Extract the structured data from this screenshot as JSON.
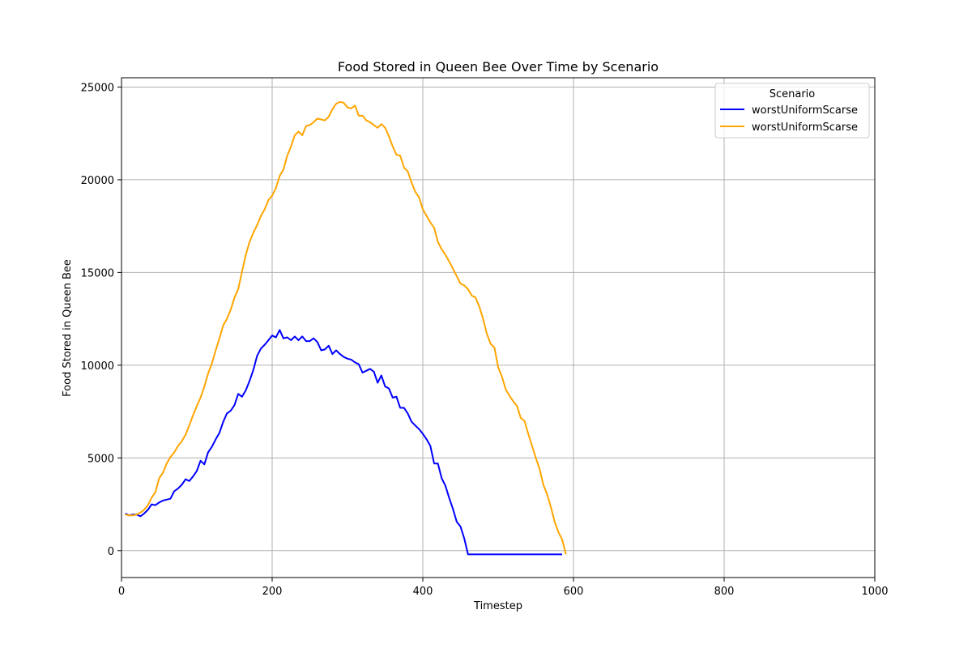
{
  "chart_data": {
    "type": "line",
    "title": "Food Stored in Queen Bee Over Time by Scenario",
    "xlabel": "Timestep",
    "ylabel": "Food Stored in Queen Bee",
    "xlim": [
      0,
      1000
    ],
    "ylim": [
      -1450,
      25500
    ],
    "xticks": [
      0,
      200,
      400,
      600,
      800,
      1000
    ],
    "yticks": [
      0,
      5000,
      10000,
      15000,
      20000,
      25000
    ],
    "grid": true,
    "legend": {
      "title": "Scenario",
      "placement": "top-right"
    },
    "series": [
      {
        "name": "worstUniformScarse",
        "color": "#0000ff",
        "points": [
          [
            5,
            2000
          ],
          [
            10,
            1900
          ],
          [
            15,
            1950
          ],
          [
            20,
            1950
          ],
          [
            25,
            1850
          ],
          [
            30,
            2000
          ],
          [
            35,
            2200
          ],
          [
            40,
            2500
          ],
          [
            45,
            2450
          ],
          [
            50,
            2600
          ],
          [
            55,
            2700
          ],
          [
            60,
            2750
          ],
          [
            65,
            2800
          ],
          [
            70,
            3200
          ],
          [
            75,
            3350
          ],
          [
            80,
            3550
          ],
          [
            85,
            3850
          ],
          [
            90,
            3750
          ],
          [
            95,
            4000
          ],
          [
            100,
            4300
          ],
          [
            105,
            4850
          ],
          [
            110,
            4650
          ],
          [
            115,
            5300
          ],
          [
            120,
            5600
          ],
          [
            125,
            6000
          ],
          [
            130,
            6350
          ],
          [
            135,
            6950
          ],
          [
            140,
            7400
          ],
          [
            145,
            7550
          ],
          [
            150,
            7850
          ],
          [
            155,
            8450
          ],
          [
            160,
            8300
          ],
          [
            165,
            8650
          ],
          [
            170,
            9150
          ],
          [
            175,
            9750
          ],
          [
            180,
            10500
          ],
          [
            185,
            10900
          ],
          [
            190,
            11100
          ],
          [
            195,
            11350
          ],
          [
            200,
            11600
          ],
          [
            205,
            11500
          ],
          [
            210,
            11900
          ],
          [
            215,
            11450
          ],
          [
            220,
            11500
          ],
          [
            225,
            11350
          ],
          [
            230,
            11550
          ],
          [
            235,
            11350
          ],
          [
            240,
            11550
          ],
          [
            245,
            11300
          ],
          [
            250,
            11300
          ],
          [
            255,
            11450
          ],
          [
            260,
            11250
          ],
          [
            265,
            10800
          ],
          [
            270,
            10850
          ],
          [
            275,
            11050
          ],
          [
            280,
            10600
          ],
          [
            285,
            10800
          ],
          [
            290,
            10600
          ],
          [
            295,
            10450
          ],
          [
            300,
            10350
          ],
          [
            305,
            10300
          ],
          [
            310,
            10150
          ],
          [
            315,
            10050
          ],
          [
            320,
            9600
          ],
          [
            325,
            9700
          ],
          [
            330,
            9800
          ],
          [
            335,
            9650
          ],
          [
            340,
            9050
          ],
          [
            345,
            9450
          ],
          [
            350,
            8850
          ],
          [
            355,
            8750
          ],
          [
            360,
            8250
          ],
          [
            365,
            8300
          ],
          [
            370,
            7700
          ],
          [
            375,
            7700
          ],
          [
            380,
            7400
          ],
          [
            385,
            6950
          ],
          [
            390,
            6750
          ],
          [
            395,
            6550
          ],
          [
            400,
            6300
          ],
          [
            405,
            6000
          ],
          [
            410,
            5650
          ],
          [
            415,
            4700
          ],
          [
            420,
            4700
          ],
          [
            425,
            3900
          ],
          [
            430,
            3500
          ],
          [
            435,
            2850
          ],
          [
            440,
            2250
          ],
          [
            445,
            1550
          ],
          [
            450,
            1300
          ],
          [
            455,
            650
          ],
          [
            460,
            -200
          ],
          [
            470,
            -200
          ],
          [
            500,
            -200
          ],
          [
            550,
            -200
          ],
          [
            585,
            -200
          ]
        ]
      },
      {
        "name": "worstUniformScarse",
        "color": "#ffa500",
        "points": [
          [
            5,
            1950
          ],
          [
            10,
            1900
          ],
          [
            15,
            1900
          ],
          [
            20,
            1950
          ],
          [
            25,
            2050
          ],
          [
            30,
            2200
          ],
          [
            35,
            2450
          ],
          [
            40,
            2850
          ],
          [
            45,
            3150
          ],
          [
            50,
            3900
          ],
          [
            55,
            4200
          ],
          [
            60,
            4700
          ],
          [
            65,
            5050
          ],
          [
            70,
            5300
          ],
          [
            75,
            5650
          ],
          [
            80,
            5900
          ],
          [
            85,
            6250
          ],
          [
            90,
            6750
          ],
          [
            95,
            7300
          ],
          [
            100,
            7800
          ],
          [
            105,
            8250
          ],
          [
            110,
            8850
          ],
          [
            115,
            9550
          ],
          [
            120,
            10100
          ],
          [
            125,
            10800
          ],
          [
            130,
            11450
          ],
          [
            135,
            12150
          ],
          [
            140,
            12500
          ],
          [
            145,
            13000
          ],
          [
            150,
            13650
          ],
          [
            155,
            14100
          ],
          [
            160,
            15050
          ],
          [
            165,
            15950
          ],
          [
            170,
            16650
          ],
          [
            175,
            17150
          ],
          [
            180,
            17550
          ],
          [
            185,
            18050
          ],
          [
            190,
            18400
          ],
          [
            195,
            18900
          ],
          [
            200,
            19150
          ],
          [
            205,
            19550
          ],
          [
            210,
            20200
          ],
          [
            215,
            20550
          ],
          [
            220,
            21300
          ],
          [
            225,
            21800
          ],
          [
            230,
            22400
          ],
          [
            235,
            22600
          ],
          [
            240,
            22400
          ],
          [
            245,
            22900
          ],
          [
            250,
            22950
          ],
          [
            255,
            23100
          ],
          [
            260,
            23300
          ],
          [
            265,
            23250
          ],
          [
            270,
            23200
          ],
          [
            275,
            23400
          ],
          [
            280,
            23800
          ],
          [
            285,
            24100
          ],
          [
            290,
            24200
          ],
          [
            295,
            24150
          ],
          [
            300,
            23900
          ],
          [
            305,
            23850
          ],
          [
            310,
            24000
          ],
          [
            315,
            23450
          ],
          [
            320,
            23450
          ],
          [
            325,
            23200
          ],
          [
            330,
            23100
          ],
          [
            335,
            22950
          ],
          [
            340,
            22800
          ],
          [
            345,
            23000
          ],
          [
            350,
            22800
          ],
          [
            355,
            22350
          ],
          [
            360,
            21800
          ],
          [
            365,
            21350
          ],
          [
            370,
            21300
          ],
          [
            375,
            20650
          ],
          [
            380,
            20450
          ],
          [
            385,
            19850
          ],
          [
            390,
            19350
          ],
          [
            395,
            19050
          ],
          [
            400,
            18400
          ],
          [
            405,
            18050
          ],
          [
            410,
            17700
          ],
          [
            415,
            17400
          ],
          [
            420,
            16650
          ],
          [
            425,
            16250
          ],
          [
            430,
            15950
          ],
          [
            435,
            15600
          ],
          [
            440,
            15200
          ],
          [
            445,
            14800
          ],
          [
            450,
            14400
          ],
          [
            455,
            14300
          ],
          [
            460,
            14100
          ],
          [
            465,
            13750
          ],
          [
            470,
            13650
          ],
          [
            475,
            13150
          ],
          [
            480,
            12500
          ],
          [
            485,
            11700
          ],
          [
            490,
            11150
          ],
          [
            495,
            10950
          ],
          [
            500,
            9900
          ],
          [
            505,
            9400
          ],
          [
            510,
            8700
          ],
          [
            515,
            8350
          ],
          [
            520,
            8050
          ],
          [
            525,
            7800
          ],
          [
            530,
            7150
          ],
          [
            535,
            7000
          ],
          [
            540,
            6300
          ],
          [
            545,
            5650
          ],
          [
            550,
            5000
          ],
          [
            555,
            4400
          ],
          [
            560,
            3550
          ],
          [
            565,
            3050
          ],
          [
            570,
            2350
          ],
          [
            575,
            1550
          ],
          [
            580,
            1000
          ],
          [
            585,
            600
          ],
          [
            590,
            -200
          ]
        ]
      }
    ]
  }
}
